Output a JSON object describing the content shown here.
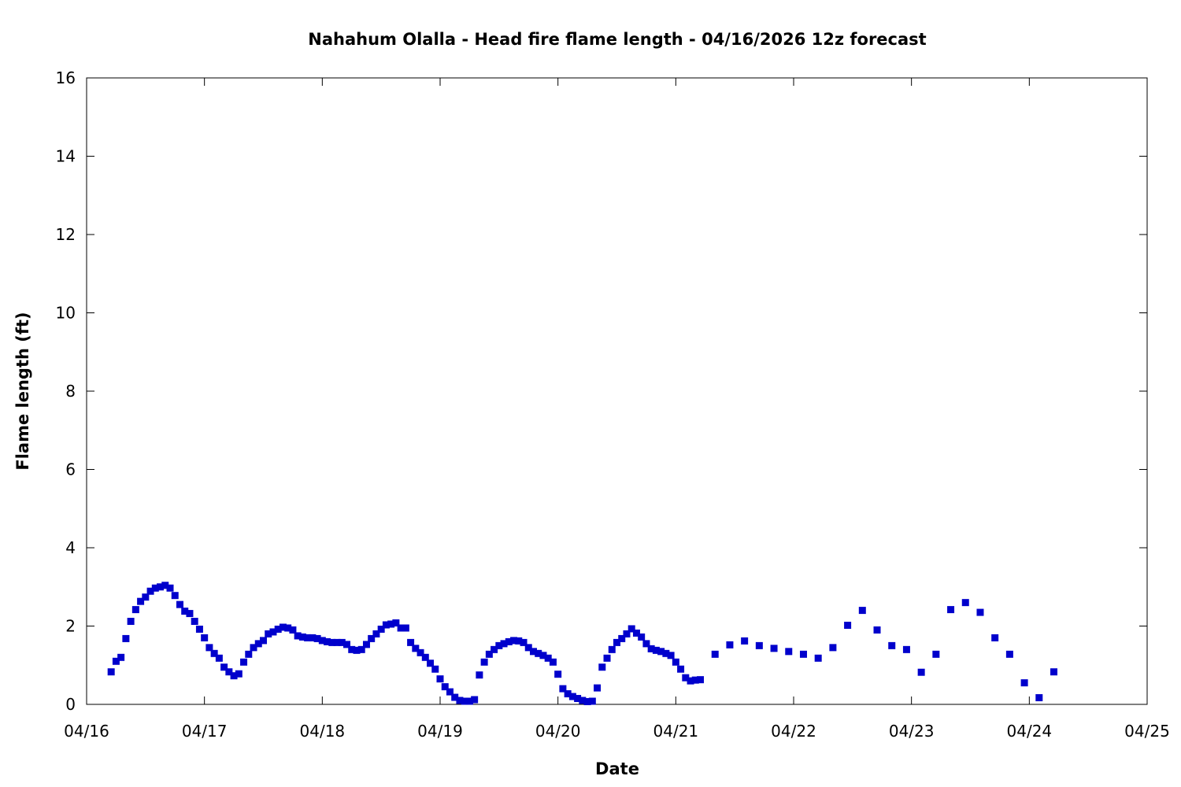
{
  "chart_data": {
    "type": "scatter",
    "title": "Nahahum Olalla - Head fire flame length - 04/16/2026 12z forecast",
    "xlabel": "Date",
    "ylabel": "Flame length (ft)",
    "xlim": [
      "04/16",
      "04/25"
    ],
    "ylim": [
      0,
      16
    ],
    "x_ticks": [
      "04/16",
      "04/17",
      "04/18",
      "04/19",
      "04/20",
      "04/21",
      "04/22",
      "04/23",
      "04/24",
      "04/25"
    ],
    "y_ticks": [
      0,
      2,
      4,
      6,
      8,
      10,
      12,
      14,
      16
    ],
    "grid": false,
    "legend": "none",
    "marker_color": "#0000cc",
    "series": [
      {
        "points": [
          [
            "04/16 05:00",
            0.83
          ],
          [
            "04/16 06:00",
            1.1
          ],
          [
            "04/16 07:00",
            1.2
          ],
          [
            "04/16 08:00",
            1.68
          ],
          [
            "04/16 09:00",
            2.12
          ],
          [
            "04/16 10:00",
            2.42
          ],
          [
            "04/16 11:00",
            2.63
          ],
          [
            "04/16 12:00",
            2.74
          ],
          [
            "04/16 13:00",
            2.89
          ],
          [
            "04/16 14:00",
            2.97
          ],
          [
            "04/16 15:00",
            3.0
          ],
          [
            "04/16 16:00",
            3.04
          ],
          [
            "04/16 17:00",
            2.97
          ],
          [
            "04/16 18:00",
            2.78
          ],
          [
            "04/16 19:00",
            2.55
          ],
          [
            "04/16 20:00",
            2.38
          ],
          [
            "04/16 21:00",
            2.32
          ],
          [
            "04/16 22:00",
            2.12
          ],
          [
            "04/16 23:00",
            1.92
          ],
          [
            "04/17 00:00",
            1.7
          ],
          [
            "04/17 01:00",
            1.45
          ],
          [
            "04/17 02:00",
            1.3
          ],
          [
            "04/17 03:00",
            1.18
          ],
          [
            "04/17 04:00",
            0.95
          ],
          [
            "04/17 05:00",
            0.83
          ],
          [
            "04/17 06:00",
            0.73
          ],
          [
            "04/17 07:00",
            0.78
          ],
          [
            "04/17 08:00",
            1.08
          ],
          [
            "04/17 09:00",
            1.28
          ],
          [
            "04/17 10:00",
            1.45
          ],
          [
            "04/17 11:00",
            1.55
          ],
          [
            "04/17 12:00",
            1.63
          ],
          [
            "04/17 13:00",
            1.8
          ],
          [
            "04/17 14:00",
            1.85
          ],
          [
            "04/17 15:00",
            1.92
          ],
          [
            "04/17 16:00",
            1.97
          ],
          [
            "04/17 17:00",
            1.95
          ],
          [
            "04/17 18:00",
            1.9
          ],
          [
            "04/17 19:00",
            1.75
          ],
          [
            "04/17 20:00",
            1.72
          ],
          [
            "04/17 21:00",
            1.7
          ],
          [
            "04/17 22:00",
            1.7
          ],
          [
            "04/17 23:00",
            1.68
          ],
          [
            "04/18 00:00",
            1.63
          ],
          [
            "04/18 01:00",
            1.6
          ],
          [
            "04/18 02:00",
            1.58
          ],
          [
            "04/18 03:00",
            1.58
          ],
          [
            "04/18 04:00",
            1.58
          ],
          [
            "04/18 05:00",
            1.53
          ],
          [
            "04/18 06:00",
            1.4
          ],
          [
            "04/18 07:00",
            1.38
          ],
          [
            "04/18 08:00",
            1.4
          ],
          [
            "04/18 09:00",
            1.53
          ],
          [
            "04/18 10:00",
            1.68
          ],
          [
            "04/18 11:00",
            1.8
          ],
          [
            "04/18 12:00",
            1.92
          ],
          [
            "04/18 13:00",
            2.03
          ],
          [
            "04/18 14:00",
            2.05
          ],
          [
            "04/18 15:00",
            2.08
          ],
          [
            "04/18 16:00",
            1.95
          ],
          [
            "04/18 17:00",
            1.95
          ],
          [
            "04/18 18:00",
            1.58
          ],
          [
            "04/18 19:00",
            1.43
          ],
          [
            "04/18 20:00",
            1.32
          ],
          [
            "04/18 21:00",
            1.2
          ],
          [
            "04/18 22:00",
            1.05
          ],
          [
            "04/18 23:00",
            0.9
          ],
          [
            "04/19 00:00",
            0.65
          ],
          [
            "04/19 01:00",
            0.45
          ],
          [
            "04/19 02:00",
            0.32
          ],
          [
            "04/19 03:00",
            0.18
          ],
          [
            "04/19 04:00",
            0.1
          ],
          [
            "04/19 05:00",
            0.08
          ],
          [
            "04/19 06:00",
            0.08
          ],
          [
            "04/19 07:00",
            0.12
          ],
          [
            "04/19 08:00",
            0.75
          ],
          [
            "04/19 09:00",
            1.08
          ],
          [
            "04/19 10:00",
            1.28
          ],
          [
            "04/19 11:00",
            1.4
          ],
          [
            "04/19 12:00",
            1.5
          ],
          [
            "04/19 13:00",
            1.55
          ],
          [
            "04/19 14:00",
            1.6
          ],
          [
            "04/19 15:00",
            1.63
          ],
          [
            "04/19 16:00",
            1.62
          ],
          [
            "04/19 17:00",
            1.58
          ],
          [
            "04/19 18:00",
            1.45
          ],
          [
            "04/19 19:00",
            1.35
          ],
          [
            "04/19 20:00",
            1.3
          ],
          [
            "04/19 21:00",
            1.25
          ],
          [
            "04/19 22:00",
            1.18
          ],
          [
            "04/19 23:00",
            1.08
          ],
          [
            "04/20 00:00",
            0.77
          ],
          [
            "04/20 01:00",
            0.4
          ],
          [
            "04/20 02:00",
            0.27
          ],
          [
            "04/20 03:00",
            0.2
          ],
          [
            "04/20 04:00",
            0.15
          ],
          [
            "04/20 05:00",
            0.1
          ],
          [
            "04/20 06:00",
            0.07
          ],
          [
            "04/20 07:00",
            0.08
          ],
          [
            "04/20 08:00",
            0.42
          ],
          [
            "04/20 09:00",
            0.95
          ],
          [
            "04/20 10:00",
            1.18
          ],
          [
            "04/20 11:00",
            1.4
          ],
          [
            "04/20 12:00",
            1.58
          ],
          [
            "04/20 13:00",
            1.68
          ],
          [
            "04/20 14:00",
            1.8
          ],
          [
            "04/20 15:00",
            1.93
          ],
          [
            "04/20 16:00",
            1.82
          ],
          [
            "04/20 17:00",
            1.72
          ],
          [
            "04/20 18:00",
            1.55
          ],
          [
            "04/20 19:00",
            1.42
          ],
          [
            "04/20 20:00",
            1.38
          ],
          [
            "04/20 21:00",
            1.35
          ],
          [
            "04/20 22:00",
            1.3
          ],
          [
            "04/20 23:00",
            1.25
          ],
          [
            "04/21 00:00",
            1.08
          ],
          [
            "04/21 01:00",
            0.9
          ],
          [
            "04/21 02:00",
            0.68
          ],
          [
            "04/21 03:00",
            0.6
          ],
          [
            "04/21 04:00",
            0.62
          ],
          [
            "04/21 05:00",
            0.63
          ],
          [
            "04/21 08:00",
            1.28
          ],
          [
            "04/21 11:00",
            1.52
          ],
          [
            "04/21 14:00",
            1.62
          ],
          [
            "04/21 17:00",
            1.5
          ],
          [
            "04/21 20:00",
            1.43
          ],
          [
            "04/21 23:00",
            1.35
          ],
          [
            "04/22 02:00",
            1.28
          ],
          [
            "04/22 05:00",
            1.18
          ],
          [
            "04/22 08:00",
            1.45
          ],
          [
            "04/22 11:00",
            2.02
          ],
          [
            "04/22 14:00",
            2.4
          ],
          [
            "04/22 17:00",
            1.9
          ],
          [
            "04/22 20:00",
            1.5
          ],
          [
            "04/22 23:00",
            1.4
          ],
          [
            "04/23 02:00",
            0.82
          ],
          [
            "04/23 05:00",
            1.28
          ],
          [
            "04/23 08:00",
            2.42
          ],
          [
            "04/23 11:00",
            2.6
          ],
          [
            "04/23 14:00",
            2.35
          ],
          [
            "04/23 17:00",
            1.7
          ],
          [
            "04/23 20:00",
            1.28
          ],
          [
            "04/23 23:00",
            0.55
          ],
          [
            "04/24 02:00",
            0.17
          ],
          [
            "04/24 05:00",
            0.83
          ]
        ]
      }
    ]
  }
}
